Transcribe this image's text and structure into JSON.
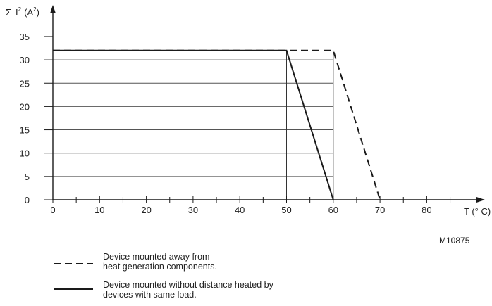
{
  "chart_data": {
    "type": "line",
    "ylabel_sigma": "Σ",
    "ylabel_I": "I",
    "ylabel_I_sup": "2",
    "ylabel_unit_open": "(A",
    "ylabel_unit_sup": "2",
    "ylabel_unit_close": ")",
    "xlabel": "T (° C)",
    "xlim": [
      0,
      90
    ],
    "ylim": [
      0,
      35
    ],
    "x_ticks": [
      0,
      10,
      20,
      30,
      40,
      50,
      60,
      70,
      80
    ],
    "x_minor_step": 5,
    "y_ticks": [
      0,
      5,
      10,
      15,
      20,
      25,
      30,
      35
    ],
    "gridlines_y": [
      5,
      10,
      15,
      20,
      25,
      30
    ],
    "series": [
      {
        "style": "dashed",
        "x": [
          0,
          60,
          70
        ],
        "y": [
          32,
          32,
          0
        ]
      },
      {
        "style": "solid",
        "x": [
          0,
          50,
          60
        ],
        "y": [
          32,
          32,
          0
        ]
      }
    ],
    "vertical_markers": [
      50,
      60
    ],
    "figure_code": "M10875",
    "legend": [
      {
        "style": "dashed",
        "line1": "Device mounted away from",
        "line2": "heat generation components."
      },
      {
        "style": "solid",
        "line1": "Device mounted without distance heated by",
        "line2": "devices with same load."
      }
    ]
  }
}
